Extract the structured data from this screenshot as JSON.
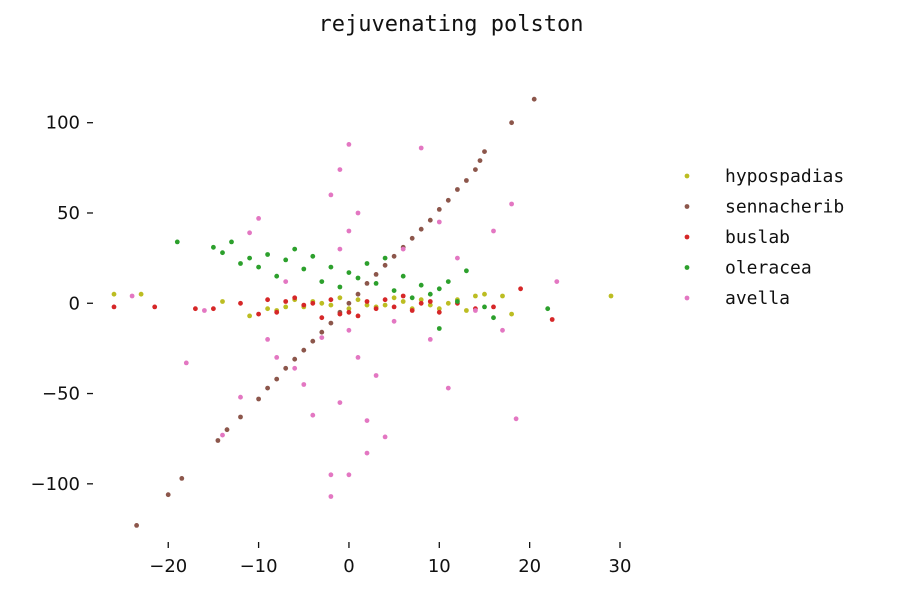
{
  "chart_data": {
    "type": "scatter",
    "title": "rejuvenating polston",
    "xlabel": "",
    "ylabel": "",
    "xlim": [
      -27,
      30
    ],
    "ylim": [
      -130,
      117
    ],
    "x_ticks": [
      -20,
      -10,
      0,
      10,
      20,
      30
    ],
    "y_ticks": [
      -100,
      -50,
      0,
      50,
      100
    ],
    "x_tick_labels": [
      "−20",
      "−10",
      "0",
      "10",
      "20",
      "30"
    ],
    "y_tick_labels": [
      "−100",
      "−50",
      "0",
      "50",
      "100"
    ],
    "grid": false,
    "legend_position": "right",
    "series": [
      {
        "name": "hypospadias",
        "color": "#bcbd22",
        "points": [
          [
            -26,
            5
          ],
          [
            -23,
            5
          ],
          [
            -14,
            1
          ],
          [
            -11,
            -7
          ],
          [
            -9,
            -3
          ],
          [
            -8,
            -4
          ],
          [
            -7,
            -2
          ],
          [
            -6,
            2
          ],
          [
            -5,
            -2
          ],
          [
            -4,
            1
          ],
          [
            -3,
            0
          ],
          [
            -2,
            -1
          ],
          [
            -1,
            3
          ],
          [
            0,
            -3
          ],
          [
            1,
            2
          ],
          [
            2,
            -1
          ],
          [
            3,
            -2
          ],
          [
            4,
            -1
          ],
          [
            5,
            3
          ],
          [
            6,
            1
          ],
          [
            7,
            -3
          ],
          [
            8,
            2
          ],
          [
            9,
            -1
          ],
          [
            10,
            -3
          ],
          [
            11,
            0
          ],
          [
            12,
            2
          ],
          [
            13,
            -4
          ],
          [
            14,
            4
          ],
          [
            15,
            5
          ],
          [
            17,
            4
          ],
          [
            18,
            -6
          ],
          [
            29,
            4
          ]
        ]
      },
      {
        "name": "sennacherib",
        "color": "#8c564b",
        "points": [
          [
            -23.5,
            -123
          ],
          [
            -20,
            -106
          ],
          [
            -18.5,
            -97
          ],
          [
            -14.5,
            -76
          ],
          [
            -13.5,
            -70
          ],
          [
            -12,
            -63
          ],
          [
            -10,
            -53
          ],
          [
            -9,
            -47
          ],
          [
            -8,
            -42
          ],
          [
            -7,
            -36
          ],
          [
            -6,
            -31
          ],
          [
            -5,
            -26
          ],
          [
            -4,
            -21
          ],
          [
            -3,
            -16
          ],
          [
            -2,
            -11
          ],
          [
            -1,
            -5
          ],
          [
            0,
            0
          ],
          [
            1,
            5
          ],
          [
            2,
            11
          ],
          [
            3,
            16
          ],
          [
            4,
            21
          ],
          [
            5,
            26
          ],
          [
            6,
            31
          ],
          [
            7,
            36
          ],
          [
            8,
            41
          ],
          [
            9,
            46
          ],
          [
            10,
            52
          ],
          [
            11,
            57
          ],
          [
            12,
            63
          ],
          [
            13,
            68
          ],
          [
            14,
            74
          ],
          [
            14.5,
            79
          ],
          [
            15,
            84
          ],
          [
            18,
            100
          ],
          [
            20.5,
            113
          ]
        ]
      },
      {
        "name": "buslab",
        "color": "#d62728",
        "points": [
          [
            -26,
            -2
          ],
          [
            -21.5,
            -2
          ],
          [
            -17,
            -3
          ],
          [
            -15,
            -3
          ],
          [
            -12,
            0
          ],
          [
            -10,
            -6
          ],
          [
            -9,
            2
          ],
          [
            -8,
            -5
          ],
          [
            -7,
            1
          ],
          [
            -6,
            3
          ],
          [
            -5,
            -1
          ],
          [
            -4,
            0
          ],
          [
            -3,
            -8
          ],
          [
            -2,
            2
          ],
          [
            -1,
            -6
          ],
          [
            0,
            -5
          ],
          [
            1,
            -7
          ],
          [
            2,
            1
          ],
          [
            3,
            -3
          ],
          [
            4,
            2
          ],
          [
            5,
            -2
          ],
          [
            6,
            4
          ],
          [
            7,
            -4
          ],
          [
            8,
            0
          ],
          [
            9,
            1
          ],
          [
            10,
            -5
          ],
          [
            12,
            0
          ],
          [
            14,
            -3
          ],
          [
            16,
            -2
          ],
          [
            19,
            8
          ],
          [
            22.5,
            -9
          ]
        ]
      },
      {
        "name": "oleracea",
        "color": "#2ca02c",
        "points": [
          [
            -19,
            34
          ],
          [
            -15,
            31
          ],
          [
            -14,
            28
          ],
          [
            -13,
            34
          ],
          [
            -12,
            22
          ],
          [
            -11,
            25
          ],
          [
            -10,
            20
          ],
          [
            -9,
            27
          ],
          [
            -8,
            15
          ],
          [
            -7,
            24
          ],
          [
            -6,
            30
          ],
          [
            -5,
            19
          ],
          [
            -4,
            26
          ],
          [
            -3,
            12
          ],
          [
            -2,
            20
          ],
          [
            -1,
            9
          ],
          [
            0,
            17
          ],
          [
            1,
            14
          ],
          [
            2,
            22
          ],
          [
            3,
            11
          ],
          [
            4,
            25
          ],
          [
            5,
            7
          ],
          [
            6,
            15
          ],
          [
            7,
            3
          ],
          [
            8,
            10
          ],
          [
            9,
            5
          ],
          [
            10,
            8
          ],
          [
            11,
            12
          ],
          [
            12,
            1
          ],
          [
            13,
            18
          ],
          [
            15,
            -2
          ],
          [
            16,
            -8
          ],
          [
            22,
            -3
          ],
          [
            10,
            -14
          ]
        ]
      },
      {
        "name": "avella",
        "color": "#e377c2",
        "points": [
          [
            -24,
            4
          ],
          [
            -18,
            -33
          ],
          [
            -16,
            -4
          ],
          [
            -14,
            -73
          ],
          [
            -12,
            -52
          ],
          [
            -11,
            39
          ],
          [
            -10,
            47
          ],
          [
            -9,
            -20
          ],
          [
            -8,
            -30
          ],
          [
            -7,
            12
          ],
          [
            -6,
            -36
          ],
          [
            -5,
            -45
          ],
          [
            -4,
            -62
          ],
          [
            -3,
            -19
          ],
          [
            -2,
            -107
          ],
          [
            -2,
            60
          ],
          [
            -1,
            -55
          ],
          [
            -1,
            30
          ],
          [
            0,
            88
          ],
          [
            0,
            40
          ],
          [
            0,
            -15
          ],
          [
            1,
            -30
          ],
          [
            1,
            50
          ],
          [
            2,
            -83
          ],
          [
            2,
            -65
          ],
          [
            3,
            -40
          ],
          [
            4,
            -74
          ],
          [
            5,
            -10
          ],
          [
            6,
            30
          ],
          [
            8,
            86
          ],
          [
            9,
            -20
          ],
          [
            10,
            45
          ],
          [
            11,
            -47
          ],
          [
            12,
            25
          ],
          [
            14,
            -4
          ],
          [
            16,
            40
          ],
          [
            17,
            -15
          ],
          [
            18,
            55
          ],
          [
            18.5,
            -64
          ],
          [
            23,
            12
          ],
          [
            -1,
            74
          ],
          [
            -2,
            -95
          ],
          [
            0,
            -95
          ]
        ]
      }
    ]
  }
}
